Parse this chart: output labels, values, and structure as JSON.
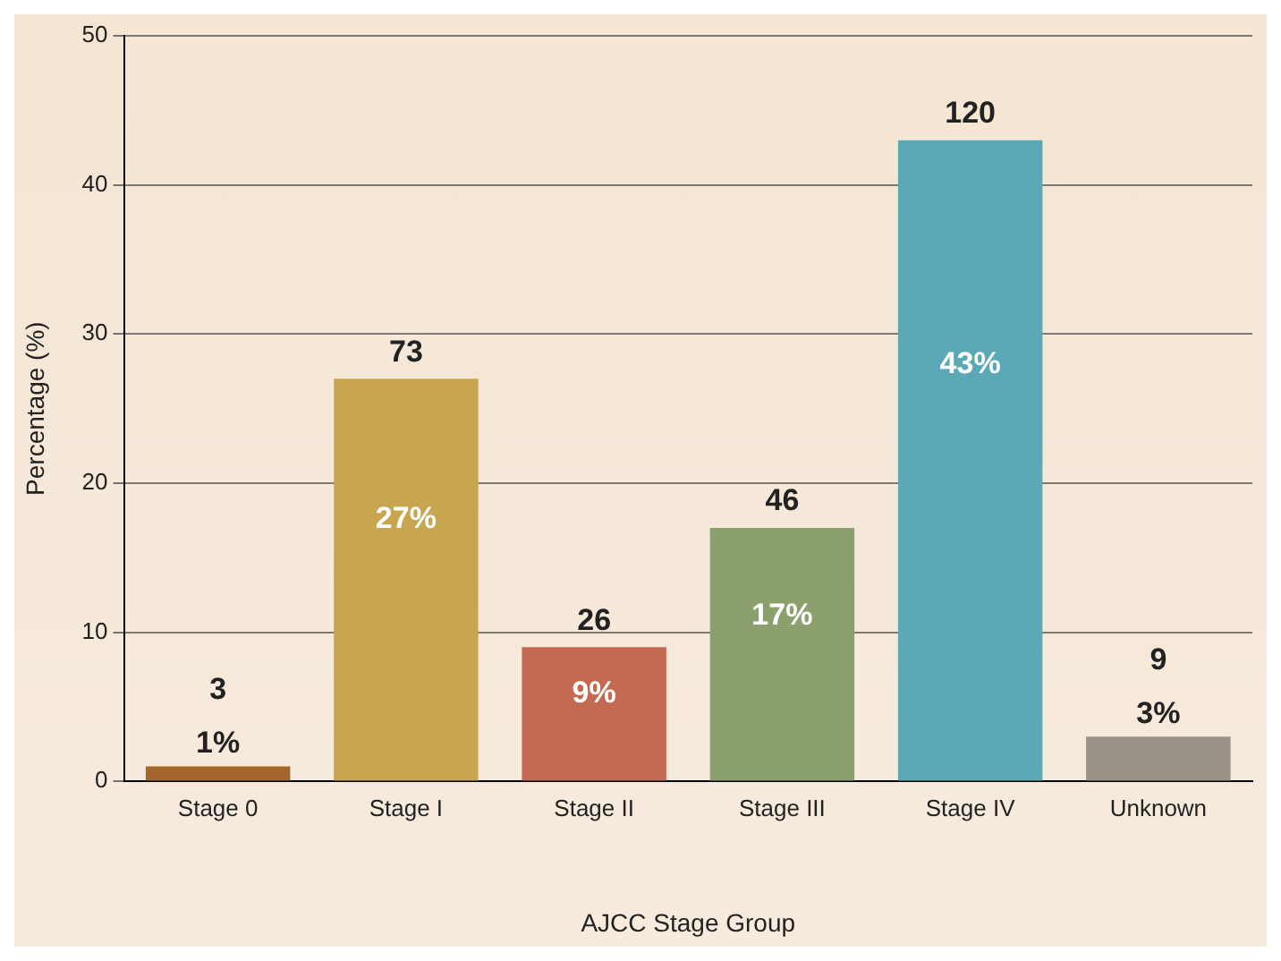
{
  "chart_data": {
    "type": "bar",
    "xlabel": "AJCC Stage Group",
    "ylabel": "Percentage (%)",
    "categories": [
      "Stage 0",
      "Stage I",
      "Stage II",
      "Stage III",
      "Stage IV",
      "Unknown"
    ],
    "values": [
      1,
      27,
      9,
      17,
      43,
      3
    ],
    "value_labels": [
      "1%",
      "27%",
      "9%",
      "17%",
      "43%",
      "3%"
    ],
    "colors": [
      "#a3662c",
      "#c8a650",
      "#c46a52",
      "#8ba06c",
      "#5ba9b6",
      "#9a938a"
    ],
    "ylim": [
      0,
      50
    ],
    "yticks": [
      0,
      10,
      20,
      30,
      40,
      50
    ],
    "grid": "y",
    "legend": false,
    "annotations": [
      {
        "text": "3",
        "x": "Stage 0",
        "y": 1
      },
      {
        "text": "73",
        "x": "Stage I",
        "y": 27
      },
      {
        "text": "26",
        "x": "Stage II",
        "y": 9
      },
      {
        "text": "46",
        "x": "Stage III",
        "y": 17
      },
      {
        "text": "120",
        "x": "Stage IV",
        "y": 43
      },
      {
        "text": "9",
        "x": "Unknown",
        "y": 3
      }
    ]
  }
}
